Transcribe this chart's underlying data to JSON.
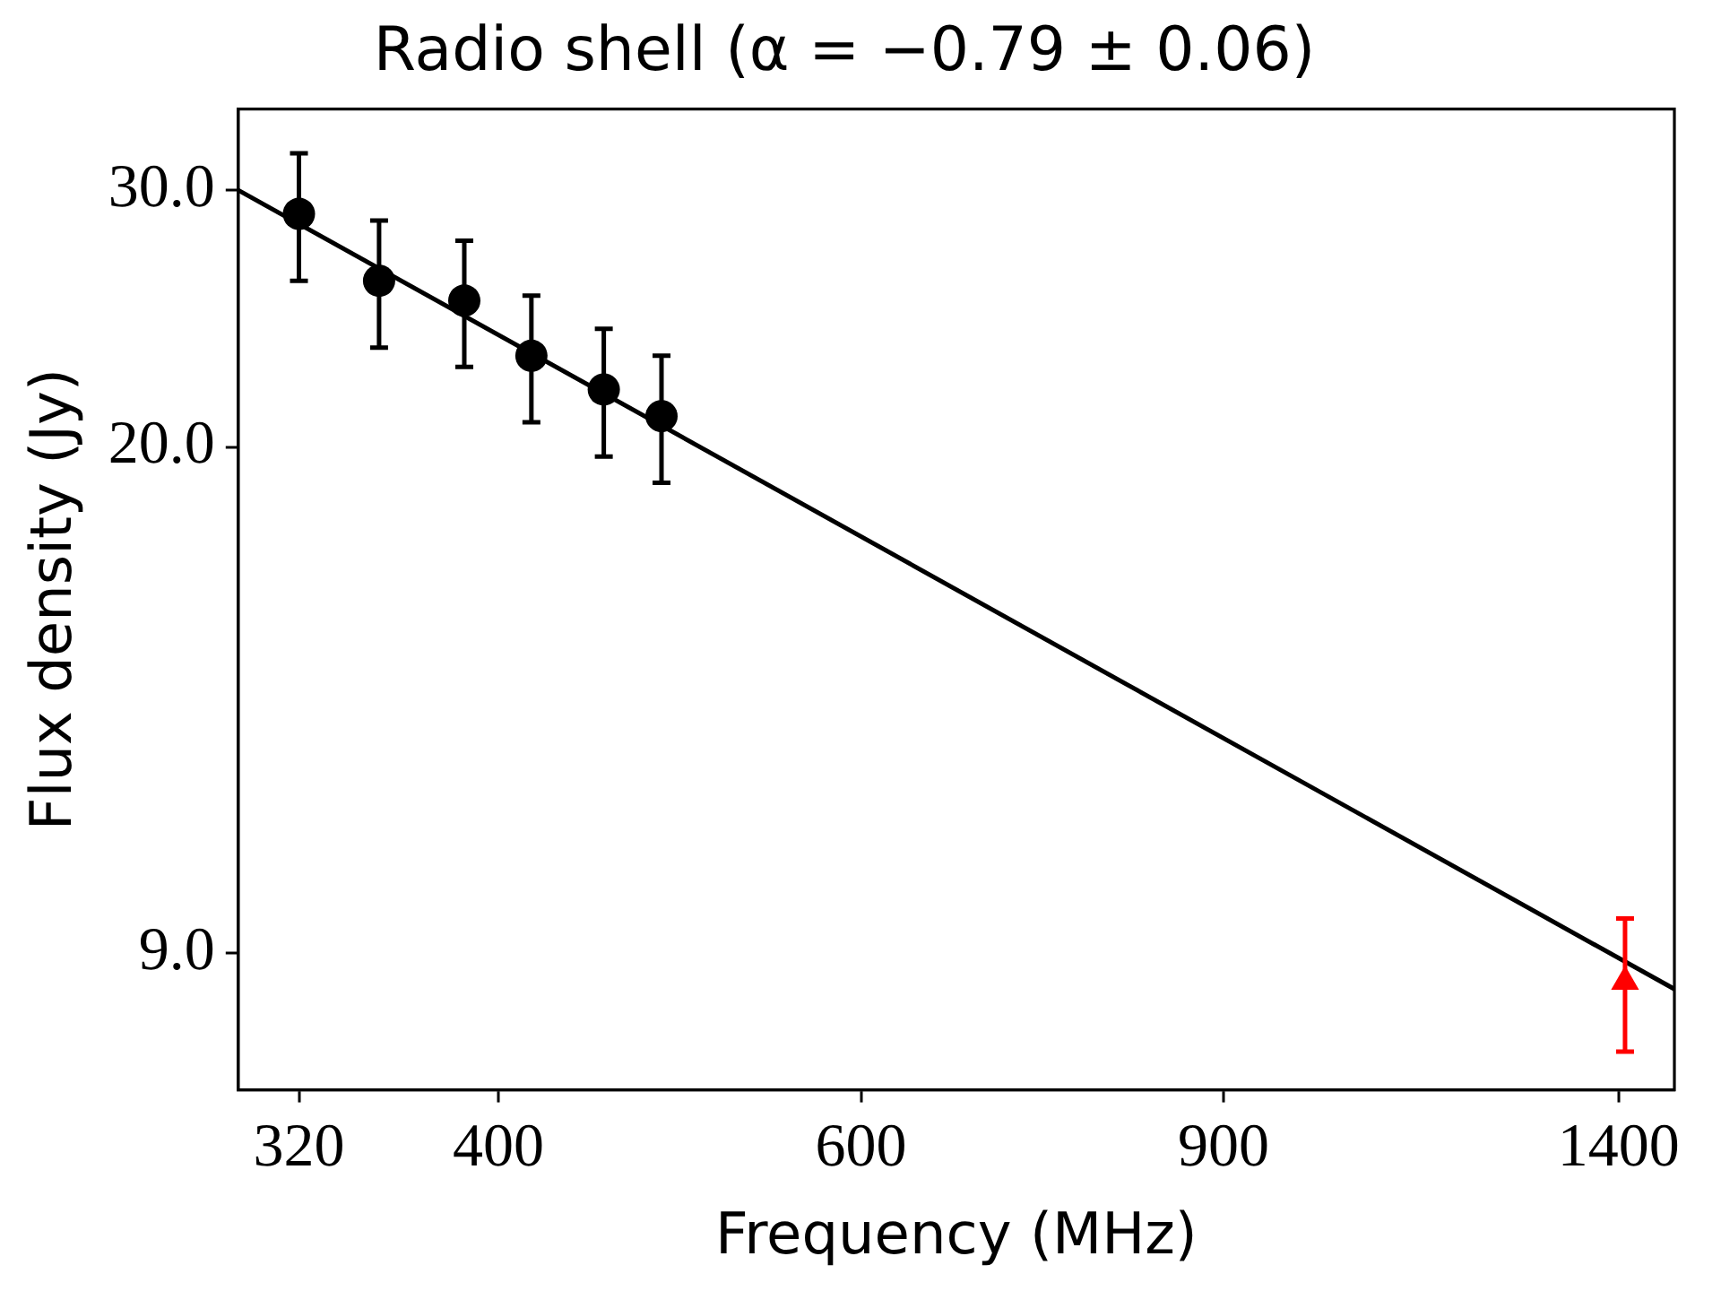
{
  "chart_data": {
    "type": "scatter",
    "title": "Radio shell (α = −0.79 ± 0.06)",
    "xlabel": "Frequency (MHz)",
    "ylabel": "Flux density (Jy)",
    "log": "xy",
    "grid": false,
    "legend": false,
    "xlim": [
      299,
      1490
    ],
    "ylim": [
      7.25,
      34.1
    ],
    "xticks": [
      320,
      400,
      600,
      900,
      1400
    ],
    "yticks": [
      {
        "value": 9,
        "label": "9.0"
      },
      {
        "value": 20,
        "label": "20.0"
      },
      {
        "value": 30,
        "label": "30.0"
      }
    ],
    "series": [
      {
        "type": "line",
        "color": "#000000",
        "marker": "none",
        "line_style": "solid",
        "x": [
          299,
          1490
        ],
        "values": [
          30.0,
          8.5
        ]
      },
      {
        "color": "#000000",
        "marker": "circle",
        "x": [
          320,
          350,
          385,
          415,
          450,
          480
        ],
        "values": [
          28.9,
          26.0,
          25.2,
          23.1,
          21.9,
          21.0
        ],
        "errors": [
          2.9,
          2.6,
          2.5,
          2.3,
          2.2,
          2.1
        ]
      },
      {
        "color": "#ff0000",
        "marker": "triangle",
        "x": [
          1410
        ],
        "values": [
          8.6
        ],
        "errors": [
          0.9
        ]
      }
    ]
  }
}
